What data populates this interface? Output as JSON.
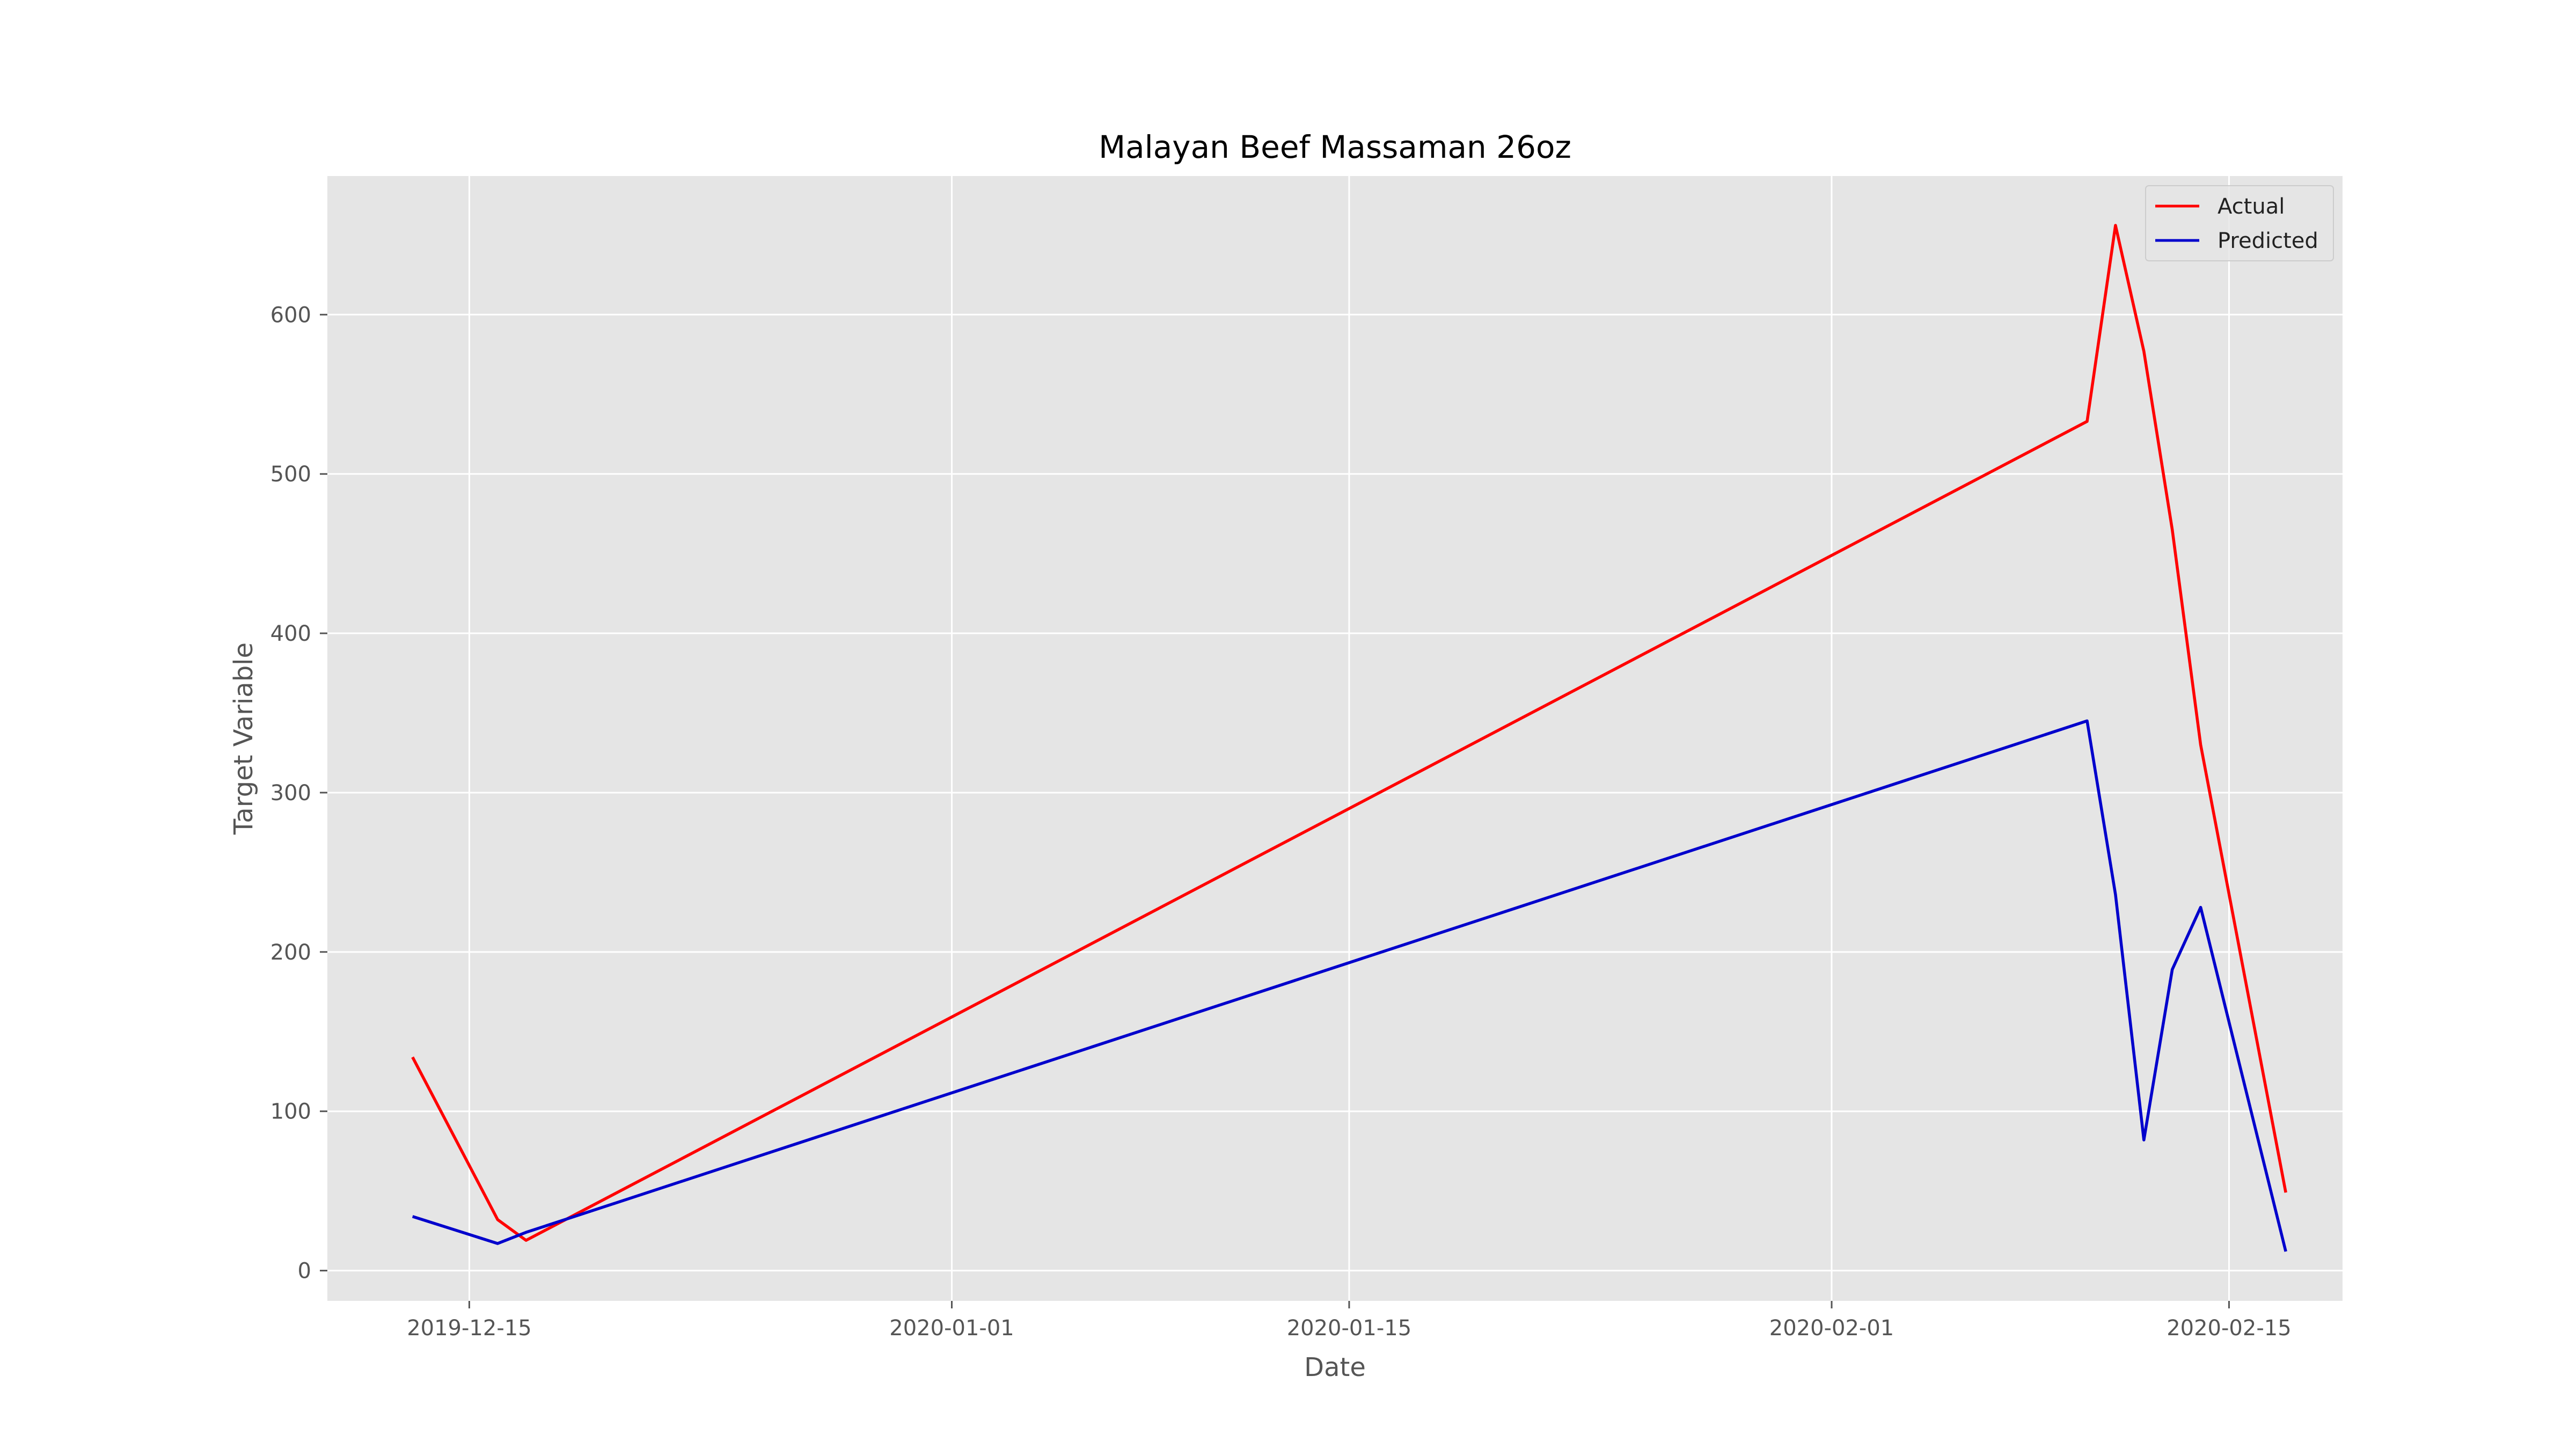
{
  "chart_data": {
    "type": "line",
    "title": "Malayan Beef Massaman 26oz",
    "xlabel": "Date",
    "ylabel": "Target Variable",
    "x_type": "date",
    "xlim": [
      "2019-12-10",
      "2020-02-19"
    ],
    "ylim": [
      -19,
      687
    ],
    "x_ticks": [
      "2019-12-15",
      "2020-01-01",
      "2020-01-15",
      "2020-02-01",
      "2020-02-15"
    ],
    "y_ticks": [
      0,
      100,
      200,
      300,
      400,
      500,
      600
    ],
    "grid": true,
    "legend_position": "top-right",
    "series": [
      {
        "name": "Actual",
        "color": "#ff0000",
        "points": [
          {
            "x": "2019-12-13",
            "y": 134
          },
          {
            "x": "2019-12-16",
            "y": 32
          },
          {
            "x": "2019-12-17",
            "y": 19
          },
          {
            "x": "2020-02-10",
            "y": 533
          },
          {
            "x": "2020-02-11",
            "y": 656
          },
          {
            "x": "2020-02-12",
            "y": 577
          },
          {
            "x": "2020-02-13",
            "y": 465
          },
          {
            "x": "2020-02-14",
            "y": 330
          },
          {
            "x": "2020-02-17",
            "y": 49
          }
        ]
      },
      {
        "name": "Predicted",
        "color": "#0000cc",
        "points": [
          {
            "x": "2019-12-13",
            "y": 34
          },
          {
            "x": "2019-12-16",
            "y": 17
          },
          {
            "x": "2019-12-17",
            "y": 24
          },
          {
            "x": "2020-02-10",
            "y": 345
          },
          {
            "x": "2020-02-11",
            "y": 236
          },
          {
            "x": "2020-02-12",
            "y": 82
          },
          {
            "x": "2020-02-13",
            "y": 189
          },
          {
            "x": "2020-02-14",
            "y": 228
          },
          {
            "x": "2020-02-17",
            "y": 12
          }
        ]
      }
    ]
  }
}
